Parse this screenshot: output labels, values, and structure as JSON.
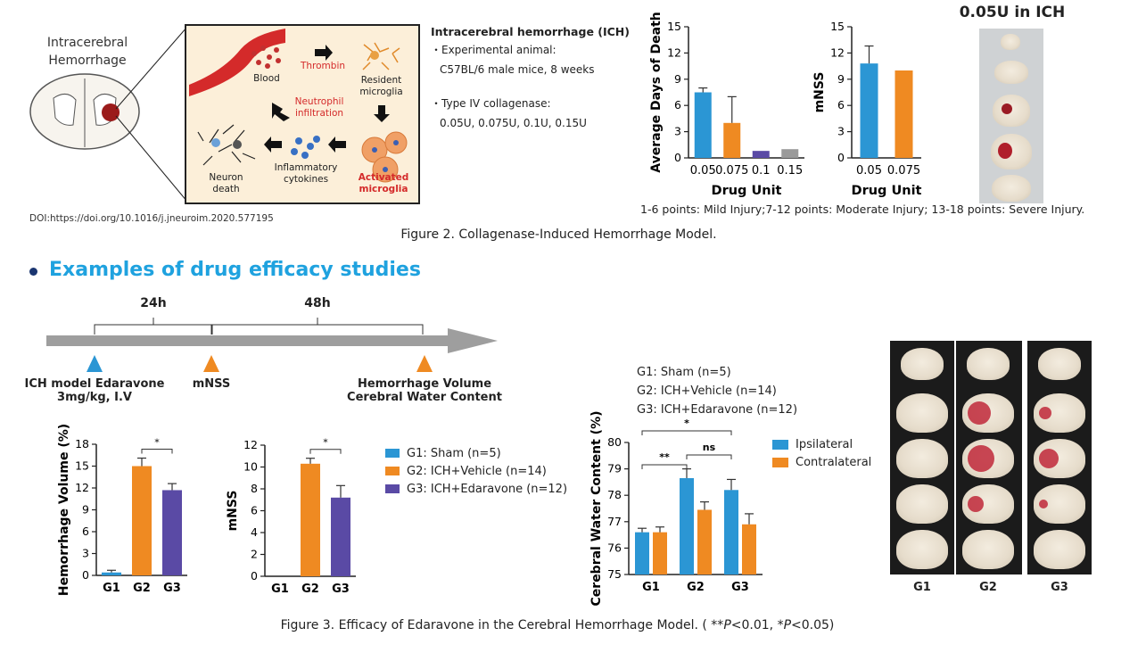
{
  "fig2": {
    "schematic": {
      "brain_title_line1": "Intracerebral",
      "brain_title_line2": "Hemorrhage",
      "labels": {
        "blood": "Blood",
        "thrombin": "Thrombin",
        "resident1": "Resident",
        "resident2": "microglia",
        "neutrophil1": "Neutrophil",
        "neutrophil2": "infiltration",
        "neuron1": "Neuron",
        "neuron2": "death",
        "cytokines1": "Inflammatory",
        "cytokines2": "cytokines",
        "activated1": "Activated",
        "activated2": "microglia"
      }
    },
    "doi": "DOI:https://doi.org/10.1016/j.jneuroim.2020.577195",
    "info": {
      "title": "Intracerebral hemorrhage (ICH)",
      "line1": "・Experimental animal:",
      "line2": "C57BL/6 male mice, 8 weeks",
      "line3": "・Type IV collagenase:",
      "line4": "0.05U, 0.075U, 0.1U, 0.15U"
    },
    "photo_title": "0.05U in ICH",
    "injury_note": "1-6 points: Mild Injury;7-12 points: Moderate Injury; 13-18 points: Severe Injury.",
    "caption": "Figure 2. Collagenase-Induced Hemorrhage Model."
  },
  "section_title": "Examples of drug efficacy studies",
  "timeline": {
    "dur1": "24h",
    "dur2": "48h",
    "mark1_line1": "ICH model Edaravone",
    "mark1_line2": "3mg/kg, I.V",
    "mark2": "mNSS",
    "mark3_line1": "Hemorrhage Volume",
    "mark3_line2": "Cerebral Water Content"
  },
  "legend_groups": {
    "g1": "G1: Sham (n=5)",
    "g2": "G2:  ICH+Vehicle (n=14)",
    "g3": "G3:  ICH+Edaravone (n=12)"
  },
  "cwc_group_text": {
    "g1": "G1: Sham (n=5)",
    "g2": "G2:  ICH+Vehicle (n=14)",
    "g3": "G3:  ICH+Edaravone (n=12)"
  },
  "cwc_legend": {
    "ipsi": "Ipsilateral",
    "contra": "Contralateral"
  },
  "photo_groups": [
    "G1",
    "G2",
    "G3"
  ],
  "fig3_caption_parts": [
    "Figure 3. Efficacy of Edaravone in the Cerebral Hemorrhage Model. ( **",
    "P",
    "<0.01, *",
    "P",
    "<0.05)"
  ],
  "colors": {
    "blue": "#2b96d4",
    "orange": "#ef8a22",
    "purple": "#5a4aa5",
    "gray": "#9a9a9a",
    "accent": "#1fa2df"
  },
  "chart_data": [
    {
      "id": "days",
      "type": "bar",
      "categories": [
        "0.05",
        "0.075",
        "0.1",
        "0.15"
      ],
      "values": [
        7.5,
        4.0,
        0.8,
        1.0
      ],
      "errors": [
        0.5,
        3.0,
        0,
        0
      ],
      "colors": [
        "#2b96d4",
        "#ef8a22",
        "#5a4aa5",
        "#9a9a9a"
      ],
      "ylabel": "Average Days of Death",
      "xlabel": "Drug Unit",
      "ylim": [
        0,
        15
      ],
      "yticks": [
        0,
        3,
        6,
        9,
        12,
        15
      ]
    },
    {
      "id": "mnss1",
      "type": "bar",
      "categories": [
        "0.05",
        "0.075"
      ],
      "values": [
        10.8,
        10.0
      ],
      "errors": [
        2.0,
        0
      ],
      "colors": [
        "#2b96d4",
        "#ef8a22"
      ],
      "ylabel": "mNSS",
      "xlabel": "Drug Unit",
      "ylim": [
        0,
        15
      ],
      "yticks": [
        0,
        3,
        6,
        9,
        12,
        15
      ]
    },
    {
      "id": "hv",
      "type": "bar",
      "categories": [
        "G1",
        "G2",
        "G3"
      ],
      "values": [
        0.4,
        15.0,
        11.7
      ],
      "errors": [
        0.3,
        1.1,
        0.9
      ],
      "colors": [
        "#2b96d4",
        "#ef8a22",
        "#5a4aa5"
      ],
      "ylabel": "Hemorrhage Volume (%)",
      "ylim": [
        0,
        18
      ],
      "yticks": [
        0,
        3,
        6,
        9,
        12,
        15,
        18
      ],
      "significance": [
        {
          "from": 1,
          "to": 2,
          "label": "*"
        }
      ]
    },
    {
      "id": "mnss2",
      "type": "bar",
      "categories": [
        "G1",
        "G2",
        "G3"
      ],
      "values": [
        0,
        10.3,
        7.2
      ],
      "errors": [
        0,
        0.5,
        1.1
      ],
      "colors": [
        "#2b96d4",
        "#ef8a22",
        "#5a4aa5"
      ],
      "ylabel": "mNSS",
      "ylim": [
        0,
        12
      ],
      "yticks": [
        0,
        2,
        4,
        6,
        8,
        10,
        12
      ],
      "significance": [
        {
          "from": 1,
          "to": 2,
          "label": "*"
        }
      ]
    },
    {
      "id": "cwc",
      "type": "bar",
      "categories": [
        "G1",
        "G2",
        "G3"
      ],
      "series": [
        {
          "name": "Ipsilateral",
          "values": [
            76.6,
            78.65,
            78.2
          ],
          "errors": [
            0.15,
            0.35,
            0.4
          ],
          "color": "#2b96d4"
        },
        {
          "name": "Contralateral",
          "values": [
            76.6,
            77.45,
            76.9
          ],
          "errors": [
            0.2,
            0.3,
            0.4
          ],
          "color": "#ef8a22"
        }
      ],
      "ylabel": "Cerebral Water Content (%)",
      "ylim": [
        75,
        80
      ],
      "yticks": [
        75,
        76,
        77,
        78,
        79,
        80
      ],
      "significance": [
        {
          "from": 0,
          "to": 1,
          "label": "**"
        },
        {
          "from": 1,
          "to": 2,
          "label": "ns"
        },
        {
          "from": 0,
          "to": 2,
          "label": "*"
        }
      ]
    }
  ]
}
